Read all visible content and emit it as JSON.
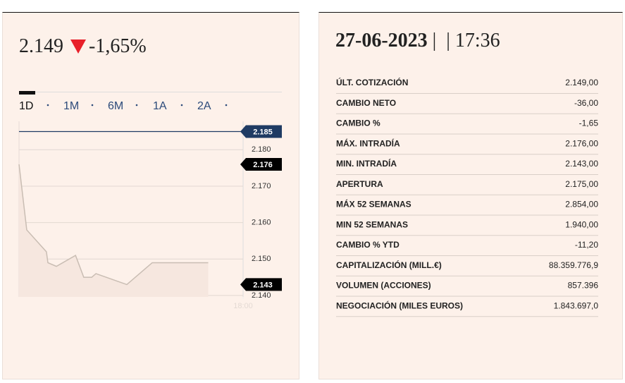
{
  "quote": {
    "price": "2.149",
    "change": "-1,65%"
  },
  "tabs": [
    "1D",
    "1M",
    "6M",
    "1A",
    "2A"
  ],
  "chart_data": {
    "type": "line",
    "x": [
      9,
      9.31,
      10.1,
      10.16,
      10.5,
      11.27,
      11.6,
      11.92,
      12.09,
      13.33,
      14.35,
      16.6
    ],
    "series": [
      {
        "color": "#c9bdb3",
        "values": [
          2.176,
          2.158,
          2.152,
          2.149,
          2.148,
          2.151,
          2.145,
          2.145,
          2.146,
          2.143,
          2.149,
          2.149
        ]
      }
    ],
    "xlim": [
      9,
      18
    ],
    "xticks": [
      {
        "value": 18,
        "label": "18:00"
      }
    ],
    "ylim": [
      2.1396,
      2.1878
    ],
    "yticks": [
      {
        "value": 2.14,
        "label": "2.140"
      },
      {
        "value": 2.15,
        "label": "2.150"
      },
      {
        "value": 2.16,
        "label": "2.160"
      },
      {
        "value": 2.17,
        "label": "2.170"
      },
      {
        "value": 2.18,
        "label": "2.180"
      }
    ],
    "grid": true,
    "reference_lines": [
      {
        "value": 2.185,
        "color": "#1f3b63",
        "line": true
      },
      {
        "value": 2.176,
        "color": "#000000",
        "line": false
      },
      {
        "value": 2.143,
        "color": "#000000",
        "line": false
      }
    ]
  },
  "header": {
    "date": "27-06-2023",
    "separator": "|",
    "time": "17:36"
  },
  "table": {
    "rows": [
      [
        "ÚLT. COTIZACIÓN",
        "2.149,00"
      ],
      [
        "CAMBIO NETO",
        "-36,00"
      ],
      [
        "CAMBIO %",
        "-1,65"
      ],
      [
        "MÁX. INTRADÍA",
        "2.176,00"
      ],
      [
        "MIN. INTRADÍA",
        "2.143,00"
      ],
      [
        "APERTURA",
        "2.175,00"
      ],
      [
        "MÁX 52 SEMANAS",
        "2.854,00"
      ],
      [
        "MIN 52 SEMANAS",
        "1.940,00"
      ],
      [
        "CAMBIO % YTD",
        "-11,20"
      ],
      [
        "CAPITALIZACIÓN (MILL.€)",
        "88.359.776,9"
      ],
      [
        "VOLUMEN (ACCIONES)",
        "857.396"
      ],
      [
        "NEGOCIACIÓN (MILES EUROS)",
        "1.843.697,0"
      ]
    ]
  }
}
